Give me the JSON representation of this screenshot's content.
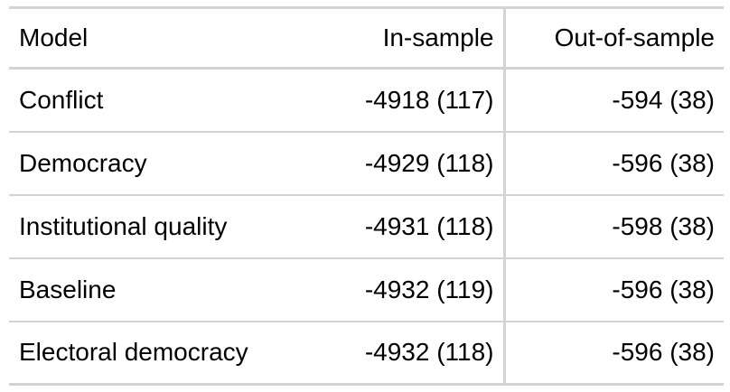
{
  "table": {
    "headers": {
      "model": "Model",
      "in_sample": "In-sample",
      "out_of_sample": "Out-of-sample"
    },
    "rows": [
      {
        "model": "Conflict",
        "in_sample": "-4918 (117)",
        "out_of_sample": "-594 (38)"
      },
      {
        "model": "Democracy",
        "in_sample": "-4929 (118)",
        "out_of_sample": "-596 (38)"
      },
      {
        "model": "Institutional quality",
        "in_sample": "-4931 (118)",
        "out_of_sample": "-598 (38)"
      },
      {
        "model": "Baseline",
        "in_sample": "-4932 (119)",
        "out_of_sample": "-596 (38)"
      },
      {
        "model": "Electoral democracy",
        "in_sample": "-4932 (118)",
        "out_of_sample": "-596 (38)"
      }
    ]
  }
}
